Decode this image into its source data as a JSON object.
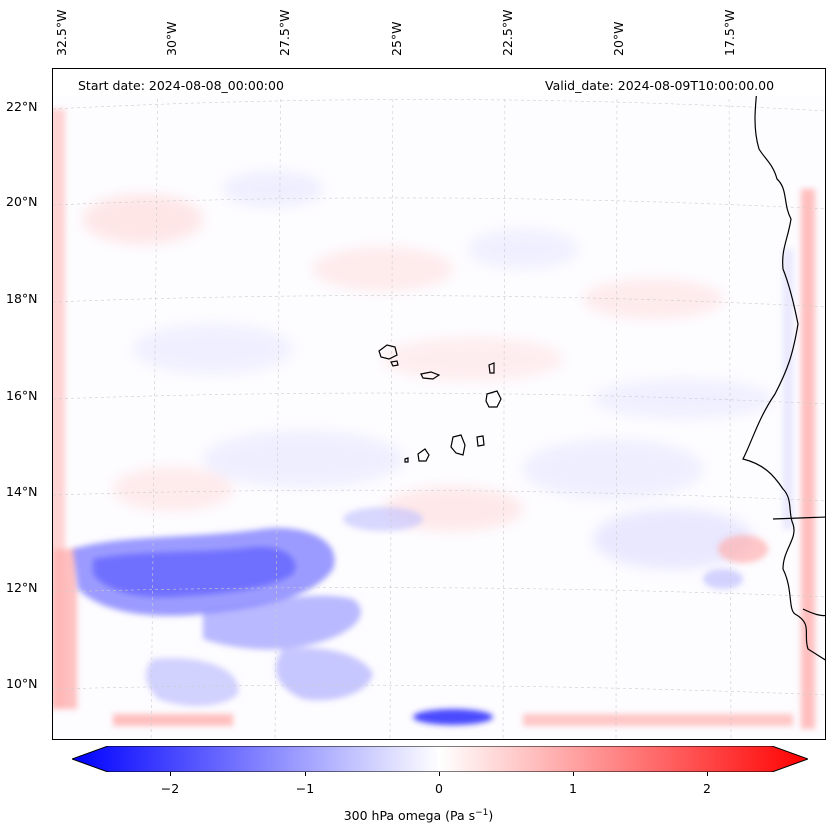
{
  "map": {
    "region": "Eastern tropical North Atlantic, Cape Verde and West African coast",
    "lon_labels": [
      "32.5°W",
      "30°W",
      "27.5°W",
      "25°W",
      "22.5°W",
      "20°W",
      "17.5°W"
    ],
    "lat_labels": [
      "22°N",
      "20°N",
      "18°N",
      "16°N",
      "14°N",
      "12°N",
      "10°N"
    ],
    "start_date": "Start date: 2024-08-08_00:00:00",
    "valid_date": "Valid_date: 2024-08-09T10:00:00.00",
    "field": "300 hPa omega",
    "colors": {
      "negative": "#0000ff",
      "zero": "#ffffff",
      "positive": "#ff0000",
      "coast": "#000000",
      "grid": "#cccccc"
    },
    "colormap": "bwr"
  },
  "colorbar": {
    "ticks": [
      "−2",
      "−1",
      "0",
      "1",
      "2"
    ],
    "range": [
      -2.6,
      2.6
    ],
    "label_text": "300 hPa omega (Pa s",
    "label_sup": "−1",
    "label_close": ")"
  }
}
